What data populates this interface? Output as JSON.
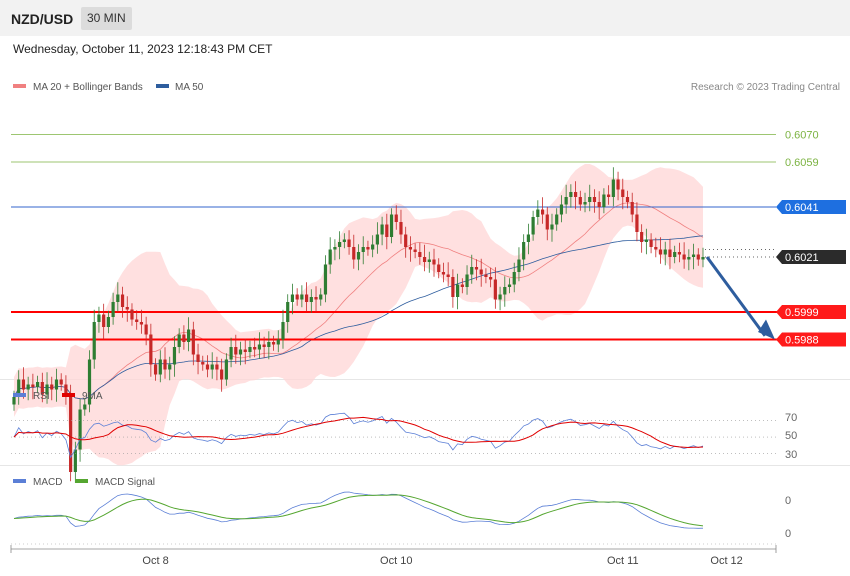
{
  "header": {
    "symbol": "NZD/USD",
    "timeframe": "30 MIN"
  },
  "timestamp": "Wednesday, October 11, 2023 12:18:43 PM CET",
  "credit": "Research © 2023 Trading Central",
  "colors": {
    "ma20": "#f08080",
    "ma50": "#2e5d9e",
    "bull": "#2e7d32",
    "bear": "#c62828",
    "band": "#ffd6d6",
    "support": "#ff0000",
    "resistance": "#3366cc",
    "target": "#7cb342",
    "rsi": "#5b7fd6",
    "rsi9ma": "#e00000",
    "macd": "#5b7fd6",
    "macdSignal": "#55a630"
  },
  "chart_data": [
    {
      "type": "candlestick",
      "legend": [
        "MA 20 + Bollinger Bands",
        "MA 50"
      ],
      "x_ticks": [
        "Oct 8",
        "Oct 10",
        "Oct 11",
        "Oct 12"
      ],
      "x_tick_index": [
        30,
        81,
        129,
        151
      ],
      "ylim": [
        0.5975,
        0.6085
      ],
      "levels": [
        {
          "value": 0.607,
          "label": "0.6070",
          "kind": "target"
        },
        {
          "value": 0.6059,
          "label": "0.6059",
          "kind": "target"
        },
        {
          "value": 0.6041,
          "label": "0.6041",
          "kind": "resistance"
        },
        {
          "value": 0.6021,
          "label": "0.6021",
          "kind": "last"
        },
        {
          "value": 0.5999,
          "label": "0.5999",
          "kind": "support"
        },
        {
          "value": 0.5988,
          "label": "0.5988",
          "kind": "support"
        }
      ],
      "close": [
        0.5965,
        0.5972,
        0.5968,
        0.597,
        0.5969,
        0.5971,
        0.5966,
        0.597,
        0.5968,
        0.5972,
        0.597,
        0.5965,
        0.5935,
        0.5944,
        0.596,
        0.5962,
        0.598,
        0.5995,
        0.5998,
        0.5993,
        0.5997,
        0.6003,
        0.6006,
        0.6001,
        0.6,
        0.5996,
        0.5995,
        0.5994,
        0.599,
        0.5978,
        0.5974,
        0.598,
        0.5976,
        0.5978,
        0.5985,
        0.599,
        0.5987,
        0.5992,
        0.5982,
        0.5979,
        0.5978,
        0.5976,
        0.5978,
        0.5976,
        0.5972,
        0.598,
        0.5985,
        0.5982,
        0.5984,
        0.5983,
        0.5985,
        0.5984,
        0.5986,
        0.5985,
        0.5987,
        0.5986,
        0.5988,
        0.5995,
        0.6003,
        0.6006,
        0.6004,
        0.6006,
        0.6003,
        0.6005,
        0.6004,
        0.6006,
        0.6018,
        0.6024,
        0.6025,
        0.6027,
        0.6028,
        0.6025,
        0.602,
        0.6023,
        0.6025,
        0.6024,
        0.6026,
        0.603,
        0.6034,
        0.6029,
        0.6038,
        0.6035,
        0.603,
        0.6025,
        0.6024,
        0.6023,
        0.6021,
        0.6019,
        0.602,
        0.6018,
        0.6015,
        0.6014,
        0.6013,
        0.6005,
        0.601,
        0.6009,
        0.6014,
        0.6017,
        0.6016,
        0.6014,
        0.6013,
        0.6012,
        0.6004,
        0.6006,
        0.6009,
        0.601,
        0.6015,
        0.602,
        0.6027,
        0.603,
        0.6037,
        0.604,
        0.6038,
        0.6032,
        0.6034,
        0.6038,
        0.6042,
        0.6045,
        0.6047,
        0.6045,
        0.6042,
        0.6043,
        0.6045,
        0.6043,
        0.6041,
        0.6046,
        0.6045,
        0.6052,
        0.6048,
        0.6045,
        0.6043,
        0.6038,
        0.6031,
        0.6027,
        0.6028,
        0.6025,
        0.6024,
        0.6022,
        0.6024,
        0.6021,
        0.6023,
        0.6022,
        0.602,
        0.6021,
        0.6022,
        0.602,
        0.6021
      ]
    },
    {
      "type": "line",
      "panel": "RSI",
      "legend": [
        "RSI",
        "9MA"
      ],
      "y_ticks": [
        "70",
        "50",
        "30"
      ]
    },
    {
      "type": "line",
      "panel": "MACD",
      "legend": [
        "MACD",
        "MACD Signal"
      ],
      "y_ticks": [
        "0",
        "0"
      ]
    }
  ]
}
